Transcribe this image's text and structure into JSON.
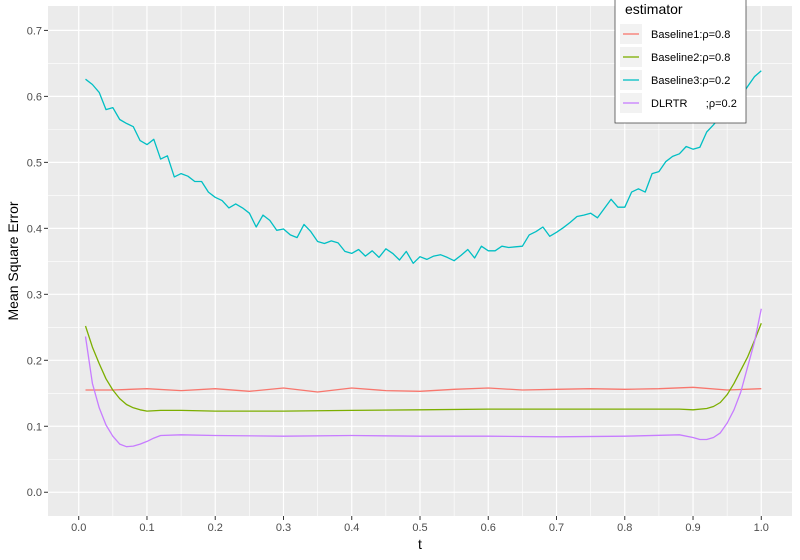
{
  "chart_data": {
    "type": "line",
    "xlabel": "t",
    "ylabel": "Mean Square Error",
    "xlim": [
      0,
      1
    ],
    "ylim": [
      0,
      0.7
    ],
    "xticks": [
      "0.0",
      "0.1",
      "0.2",
      "0.3",
      "0.4",
      "0.5",
      "0.6",
      "0.7",
      "0.8",
      "0.9",
      "1.0"
    ],
    "yticks": [
      "0.0",
      "0.1",
      "0.2",
      "0.3",
      "0.4",
      "0.5",
      "0.6",
      "0.7"
    ],
    "grid": true,
    "legend": {
      "title": "estimator",
      "position": "top-right"
    },
    "series": [
      {
        "name": "Baseline1:ρ=0.8",
        "color": "#F8766D",
        "x": [
          0.01,
          0.05,
          0.1,
          0.15,
          0.2,
          0.25,
          0.3,
          0.35,
          0.4,
          0.45,
          0.5,
          0.55,
          0.6,
          0.65,
          0.7,
          0.75,
          0.8,
          0.85,
          0.9,
          0.95,
          1.0
        ],
        "values": [
          0.155,
          0.155,
          0.157,
          0.154,
          0.157,
          0.153,
          0.158,
          0.152,
          0.158,
          0.154,
          0.153,
          0.156,
          0.158,
          0.155,
          0.156,
          0.157,
          0.156,
          0.157,
          0.159,
          0.155,
          0.157
        ]
      },
      {
        "name": "Baseline2:ρ=0.8",
        "color": "#7CAE00",
        "x": [
          0.01,
          0.02,
          0.03,
          0.04,
          0.05,
          0.06,
          0.07,
          0.08,
          0.09,
          0.1,
          0.12,
          0.15,
          0.2,
          0.3,
          0.4,
          0.5,
          0.6,
          0.7,
          0.8,
          0.88,
          0.9,
          0.92,
          0.93,
          0.94,
          0.95,
          0.96,
          0.97,
          0.98,
          0.99,
          1.0
        ],
        "values": [
          0.252,
          0.22,
          0.195,
          0.172,
          0.155,
          0.142,
          0.133,
          0.128,
          0.125,
          0.123,
          0.124,
          0.124,
          0.123,
          0.123,
          0.124,
          0.125,
          0.126,
          0.126,
          0.126,
          0.126,
          0.125,
          0.127,
          0.13,
          0.136,
          0.148,
          0.165,
          0.185,
          0.205,
          0.23,
          0.256
        ]
      },
      {
        "name": "Baseline3:ρ=0.2",
        "color": "#00BFC4",
        "x": [
          0.01,
          0.02,
          0.03,
          0.04,
          0.05,
          0.06,
          0.07,
          0.08,
          0.09,
          0.1,
          0.11,
          0.12,
          0.13,
          0.14,
          0.15,
          0.16,
          0.17,
          0.18,
          0.19,
          0.2,
          0.21,
          0.22,
          0.23,
          0.24,
          0.25,
          0.26,
          0.27,
          0.28,
          0.29,
          0.3,
          0.31,
          0.32,
          0.33,
          0.34,
          0.35,
          0.36,
          0.37,
          0.38,
          0.39,
          0.4,
          0.41,
          0.42,
          0.43,
          0.44,
          0.45,
          0.46,
          0.47,
          0.48,
          0.49,
          0.5,
          0.51,
          0.52,
          0.53,
          0.54,
          0.55,
          0.56,
          0.57,
          0.58,
          0.59,
          0.6,
          0.61,
          0.62,
          0.63,
          0.64,
          0.65,
          0.66,
          0.67,
          0.68,
          0.69,
          0.7,
          0.71,
          0.72,
          0.73,
          0.74,
          0.75,
          0.76,
          0.77,
          0.78,
          0.79,
          0.8,
          0.81,
          0.82,
          0.83,
          0.84,
          0.85,
          0.86,
          0.87,
          0.88,
          0.89,
          0.9,
          0.91,
          0.92,
          0.93,
          0.94,
          0.95,
          0.96,
          0.97,
          0.98,
          0.99,
          1.0
        ],
        "values": [
          0.626,
          0.618,
          0.606,
          0.58,
          0.583,
          0.565,
          0.559,
          0.554,
          0.533,
          0.527,
          0.535,
          0.505,
          0.51,
          0.478,
          0.483,
          0.479,
          0.471,
          0.471,
          0.455,
          0.447,
          0.442,
          0.431,
          0.437,
          0.431,
          0.423,
          0.402,
          0.42,
          0.412,
          0.397,
          0.399,
          0.39,
          0.386,
          0.406,
          0.395,
          0.38,
          0.377,
          0.381,
          0.378,
          0.365,
          0.362,
          0.368,
          0.358,
          0.366,
          0.356,
          0.369,
          0.362,
          0.352,
          0.365,
          0.347,
          0.357,
          0.353,
          0.358,
          0.36,
          0.356,
          0.351,
          0.359,
          0.368,
          0.355,
          0.373,
          0.366,
          0.366,
          0.373,
          0.371,
          0.372,
          0.373,
          0.39,
          0.395,
          0.402,
          0.388,
          0.394,
          0.401,
          0.409,
          0.418,
          0.42,
          0.423,
          0.416,
          0.43,
          0.444,
          0.432,
          0.432,
          0.455,
          0.46,
          0.455,
          0.483,
          0.486,
          0.501,
          0.509,
          0.513,
          0.524,
          0.52,
          0.523,
          0.546,
          0.557,
          0.57,
          0.58,
          0.59,
          0.6,
          0.615,
          0.63,
          0.639
        ]
      },
      {
        "name": "DLRTR      ;ρ=0.2",
        "color": "#C77CFF",
        "x": [
          0.01,
          0.02,
          0.03,
          0.04,
          0.05,
          0.06,
          0.07,
          0.08,
          0.09,
          0.1,
          0.11,
          0.12,
          0.15,
          0.2,
          0.3,
          0.4,
          0.5,
          0.6,
          0.7,
          0.8,
          0.88,
          0.9,
          0.91,
          0.92,
          0.93,
          0.94,
          0.95,
          0.96,
          0.97,
          0.98,
          0.99,
          1.0
        ],
        "values": [
          0.236,
          0.165,
          0.128,
          0.102,
          0.085,
          0.073,
          0.069,
          0.07,
          0.073,
          0.077,
          0.082,
          0.086,
          0.087,
          0.086,
          0.085,
          0.086,
          0.085,
          0.085,
          0.084,
          0.085,
          0.087,
          0.083,
          0.08,
          0.08,
          0.083,
          0.09,
          0.105,
          0.125,
          0.152,
          0.19,
          0.228,
          0.278
        ]
      }
    ]
  }
}
